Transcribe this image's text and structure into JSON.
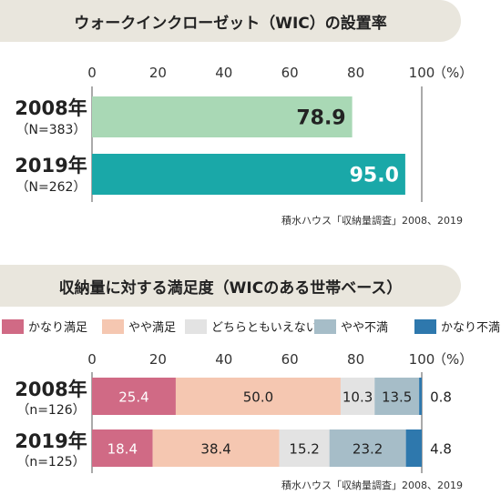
{
  "chart_data": [
    {
      "type": "bar",
      "title": "ウォークインクローゼット（WIC）の設置率",
      "categories": [
        {
          "year": "2008年",
          "n": "（N=383）"
        },
        {
          "year": "2019年",
          "n": "（N=262）"
        }
      ],
      "values": [
        78.9,
        95.0
      ],
      "value_labels": [
        "78.9",
        "95.0"
      ],
      "colors": [
        "#a9d8b5",
        "#1aa8a8"
      ],
      "label_colors": [
        "#222222",
        "#ffffff"
      ],
      "xlim": [
        0,
        100
      ],
      "ticks": [
        "0",
        "20",
        "40",
        "60",
        "80",
        "100"
      ],
      "unit": "（%）",
      "source": "積水ハウス「収納量調査」2008、2019",
      "grid": false
    },
    {
      "type": "bar",
      "stacked": true,
      "title": "収納量に対する満足度（WICのある世帯ベース）",
      "categories": [
        {
          "year": "2008年",
          "n": "（n=126）"
        },
        {
          "year": "2019年",
          "n": "（n=125）"
        }
      ],
      "series": [
        {
          "name": "かなり満足",
          "color": "#d06a85",
          "label_color": "#ffffff",
          "values": [
            25.4,
            18.4
          ],
          "labels": [
            "25.4",
            "18.4"
          ]
        },
        {
          "name": "やや満足",
          "color": "#f5c7b1",
          "label_color": "#222222",
          "values": [
            50.0,
            38.4
          ],
          "labels": [
            "50.0",
            "38.4"
          ]
        },
        {
          "name": "どちらともいえない",
          "color": "#e3e3e3",
          "label_color": "#222222",
          "values": [
            10.3,
            15.2
          ],
          "labels": [
            "10.3",
            "15.2"
          ]
        },
        {
          "name": "やや不満",
          "color": "#a6bdc8",
          "label_color": "#222222",
          "values": [
            13.5,
            23.2
          ],
          "labels": [
            "13.5",
            "23.2"
          ]
        },
        {
          "name": "かなり不満",
          "color": "#2e78ad",
          "label_color": "#222222",
          "values": [
            0.8,
            4.8
          ],
          "labels": [
            "0.8",
            "4.8"
          ]
        }
      ],
      "xlim": [
        0,
        100
      ],
      "ticks": [
        "0",
        "20",
        "40",
        "60",
        "80",
        "100"
      ],
      "unit": "（%）",
      "source": "積水ハウス「収納量調査」2008、2019",
      "legend_position": "top",
      "grid": false
    }
  ]
}
